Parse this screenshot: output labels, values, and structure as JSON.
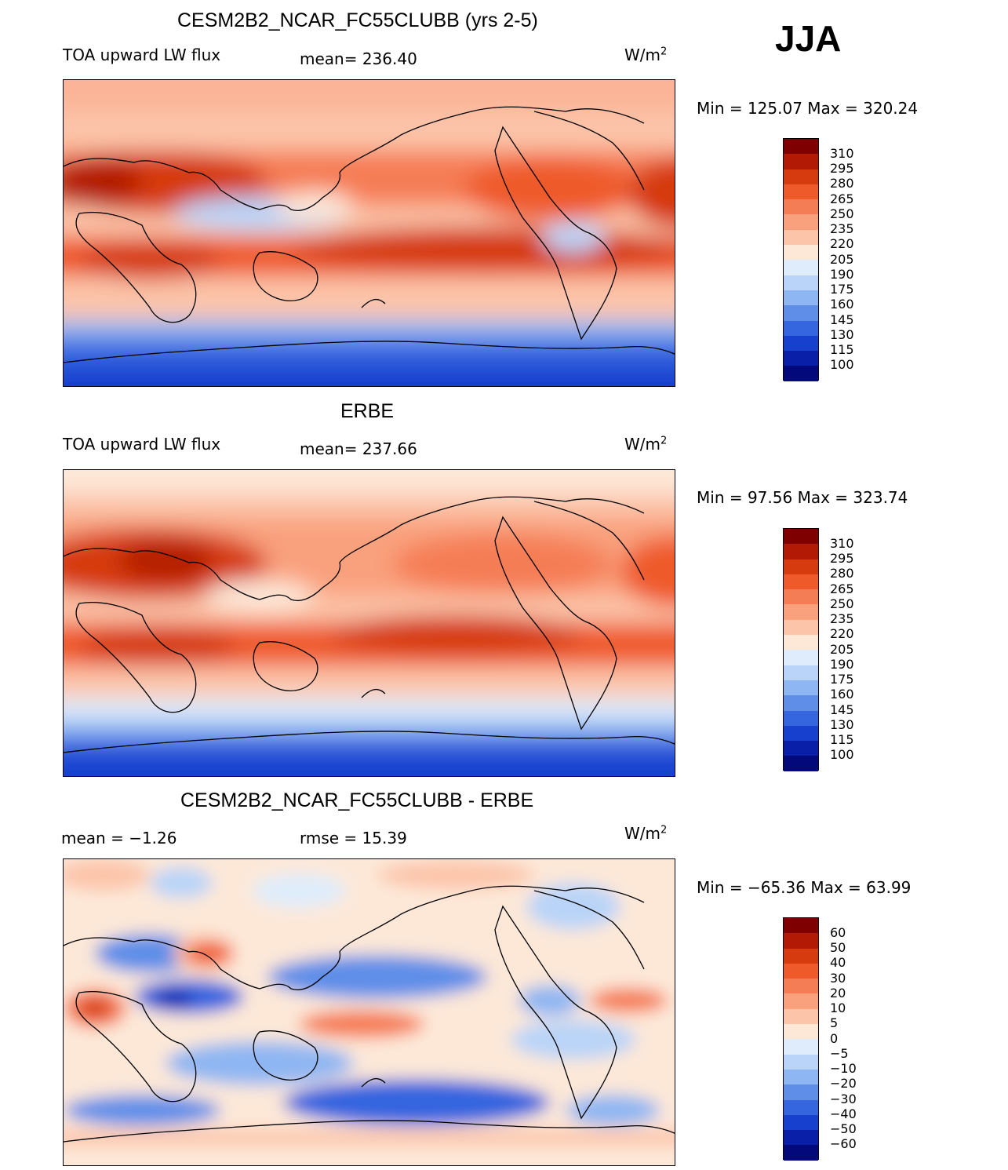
{
  "season": "JJA",
  "panels": [
    {
      "title": "CESM2B2_NCAR_FC55CLUBB (yrs 2-5)",
      "left_label": "TOA upward LW flux",
      "stat_label": "mean= 236.40",
      "units": "W/m",
      "units_exp": "2",
      "minmax": "Min = 125.07 Max = 320.24",
      "colorbar_labels": [
        "310",
        "295",
        "280",
        "265",
        "250",
        "235",
        "220",
        "205",
        "190",
        "175",
        "160",
        "145",
        "130",
        "115",
        "100"
      ]
    },
    {
      "title": "ERBE",
      "left_label": "TOA upward LW flux",
      "stat_label": "mean= 237.66",
      "units": "W/m",
      "units_exp": "2",
      "minmax": "Min =  97.56 Max = 323.74",
      "colorbar_labels": [
        "310",
        "295",
        "280",
        "265",
        "250",
        "235",
        "220",
        "205",
        "190",
        "175",
        "160",
        "145",
        "130",
        "115",
        "100"
      ]
    },
    {
      "title": "CESM2B2_NCAR_FC55CLUBB - ERBE",
      "left_label": "mean =  −1.26",
      "stat_label": "rmse =   15.39",
      "units": "W/m",
      "units_exp": "2",
      "minmax": "Min = −65.36 Max =  63.99",
      "colorbar_labels": [
        "60",
        "50",
        "40",
        "30",
        "20",
        "10",
        "5",
        "0",
        "−5",
        "−10",
        "−20",
        "−30",
        "−40",
        "−50",
        "−60"
      ]
    }
  ],
  "colors": {
    "scale": [
      "#7f0000",
      "#b31a06",
      "#d63b10",
      "#ef5a2a",
      "#f57d55",
      "#f9a07d",
      "#fcc4a9",
      "#fde8d8",
      "#deecfb",
      "#b9d4f8",
      "#8eb6f2",
      "#5f8ee8",
      "#3565df",
      "#1740cf",
      "#0a1fa8",
      "#03097a"
    ],
    "coast": "#000000"
  }
}
